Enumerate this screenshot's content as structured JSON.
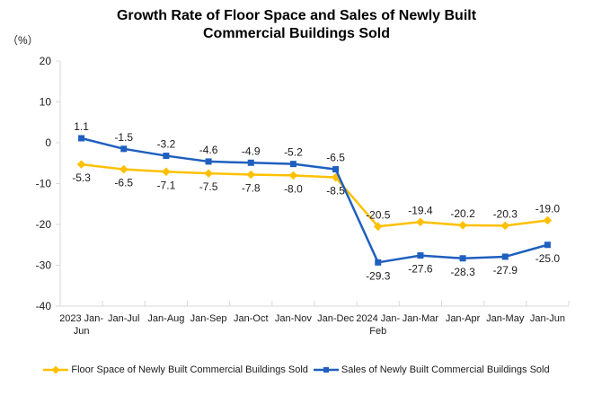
{
  "header": {
    "title_line1": "Growth Rate of Floor Space and Sales of Newly Built",
    "title_line2": "Commercial Buildings Sold",
    "y_unit_label": "（%）"
  },
  "chart_data": {
    "type": "line",
    "title": "Growth Rate of Floor Space and Sales of Newly Built Commercial Buildings Sold",
    "ylabel": "（%）",
    "xlabel": "",
    "ylim": [
      -40,
      20
    ],
    "yticks": [
      20,
      10,
      0,
      -10,
      -20,
      -30,
      -40
    ],
    "grid": false,
    "legend_position": "bottom",
    "axis_color": "#D9D9D9",
    "text_color": "#1a1a1a",
    "categories": [
      "2023 Jan-\nJun",
      "Jan-Jul",
      "Jan-Aug",
      "Jan-Sep",
      "Jan-Oct",
      "Jan-Nov",
      "Jan-Dec",
      "2024 Jan-\nFeb",
      "Jan-Mar",
      "Jan-Apr",
      "Jan-May",
      "Jan-Jun"
    ],
    "series": [
      {
        "name": "Floor Space of Newly Built Commercial Buildings Sold",
        "color": "#FFC000",
        "marker": "diamond",
        "values": [
          -5.3,
          -6.5,
          -7.1,
          -7.5,
          -7.8,
          -8.0,
          -8.5,
          -20.5,
          -19.4,
          -20.2,
          -20.3,
          -19.0
        ],
        "label_sides": [
          "below",
          "below",
          "below",
          "below",
          "below",
          "below",
          "below",
          "above",
          "above",
          "above",
          "above",
          "above"
        ]
      },
      {
        "name": "Sales of Newly Built Commercial Buildings Sold",
        "color": "#1F5FBF",
        "marker": "square",
        "values": [
          1.1,
          -1.5,
          -3.2,
          -4.6,
          -4.9,
          -5.2,
          -6.5,
          -29.3,
          -27.6,
          -28.3,
          -27.9,
          -25.0
        ],
        "label_sides": [
          "above",
          "above",
          "above",
          "above",
          "above",
          "above",
          "above",
          "below",
          "below",
          "below",
          "below",
          "below"
        ]
      }
    ]
  }
}
